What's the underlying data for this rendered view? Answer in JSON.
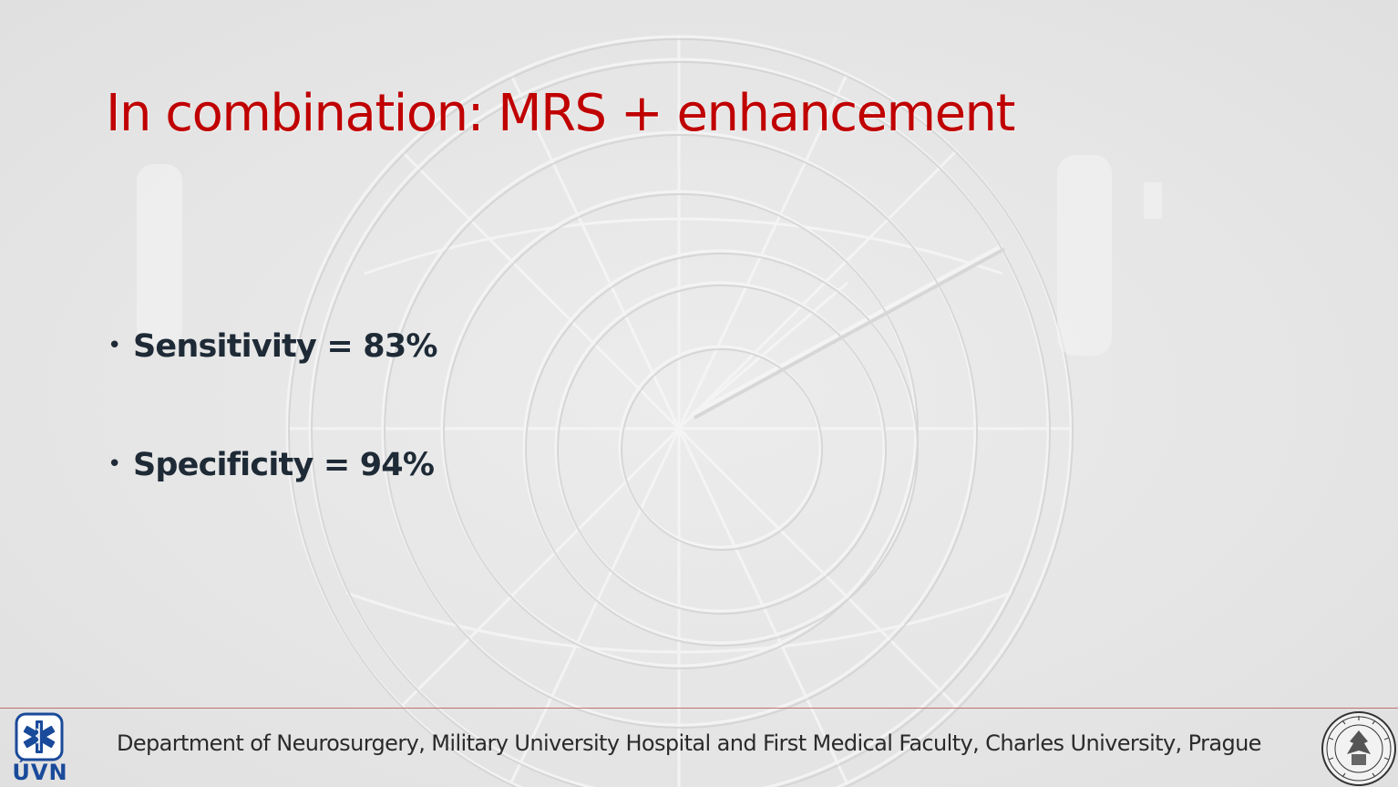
{
  "slide": {
    "title": "In combination: MRS + enhancement",
    "bullets": [
      {
        "marker": "•",
        "text": "Sensitivity = 83%"
      },
      {
        "marker": "•",
        "text": "Specificity = 94%"
      }
    ]
  },
  "footer": {
    "text": "Department of Neurosurgery, Military University Hospital and First Medical Faculty, Charles University, Prague",
    "left_logo": {
      "icon": "star-of-life-icon",
      "text": "ÚVN",
      "color": "#1a4a9a"
    },
    "right_logo": {
      "icon": "university-seal-icon"
    }
  },
  "colors": {
    "title": "#c00000",
    "body_text": "#1e2a36",
    "background": "#e7e7e7",
    "footer_rule": "#c07070"
  },
  "background_art": {
    "icon": "astronomical-clock-watermark"
  }
}
